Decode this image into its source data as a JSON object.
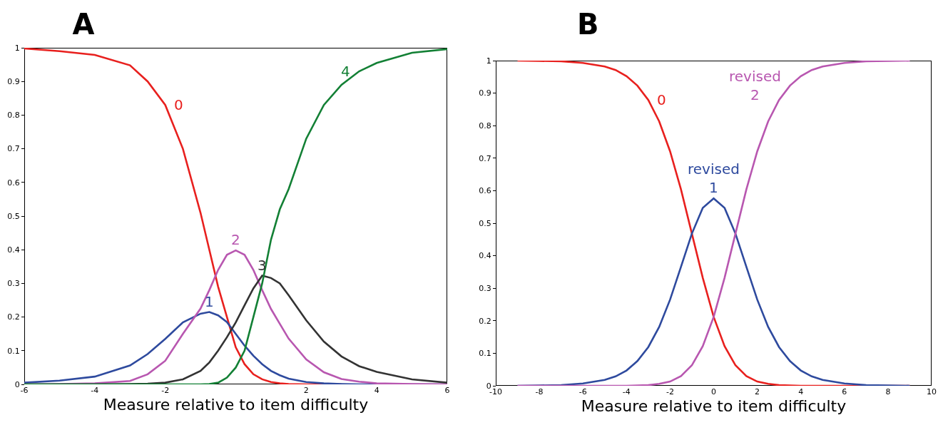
{
  "chart_data": [
    {
      "type": "line",
      "title": "A",
      "xlabel": "Measure relative to item difficulty",
      "x": [
        -6,
        -5,
        -4,
        -3,
        -2.5,
        -2,
        -1.5,
        -1,
        -0.75,
        -0.5,
        -0.25,
        0,
        0.25,
        0.5,
        0.75,
        1,
        1.25,
        1.5,
        2,
        2.5,
        3,
        3.5,
        4,
        5,
        6
      ],
      "series": [
        {
          "name": "0",
          "color": "#e8201e",
          "values": [
            0.998,
            0.99,
            0.979,
            0.948,
            0.9,
            0.83,
            0.7,
            0.51,
            0.4,
            0.29,
            0.2,
            0.11,
            0.06,
            0.03,
            0.015,
            0.007,
            0.003,
            0.001,
            0,
            0,
            0,
            null,
            null,
            null,
            null
          ]
        },
        {
          "name": "1",
          "color": "#2e4a9e",
          "values": [
            0.005,
            0.011,
            0.023,
            0.056,
            0.09,
            0.135,
            0.184,
            0.21,
            0.215,
            0.205,
            0.185,
            0.15,
            0.115,
            0.085,
            0.06,
            0.04,
            0.027,
            0.017,
            0.007,
            0.003,
            0.001,
            0,
            0,
            0,
            0
          ]
        },
        {
          "name": "2",
          "color": "#b857b0",
          "values": [
            0,
            0.001,
            0.003,
            0.01,
            0.03,
            0.07,
            0.15,
            0.225,
            0.28,
            0.34,
            0.385,
            0.398,
            0.385,
            0.34,
            0.28,
            0.224,
            0.18,
            0.136,
            0.074,
            0.036,
            0.016,
            0.008,
            0.003,
            0.001,
            0
          ]
        },
        {
          "name": "3",
          "color": "#333333",
          "values": [
            0,
            0,
            0,
            0.001,
            0.002,
            0.005,
            0.015,
            0.04,
            0.065,
            0.1,
            0.14,
            0.184,
            0.235,
            0.285,
            0.323,
            0.316,
            0.3,
            0.265,
            0.19,
            0.127,
            0.083,
            0.054,
            0.037,
            0.015,
            0.005
          ]
        },
        {
          "name": "4",
          "color": "#138035",
          "values": [
            0,
            0,
            0,
            0,
            0,
            0,
            0,
            0,
            0.001,
            0.005,
            0.02,
            0.05,
            0.1,
            0.2,
            0.3,
            0.43,
            0.52,
            0.58,
            0.73,
            0.83,
            0.89,
            0.93,
            0.955,
            0.985,
            0.996
          ]
        }
      ],
      "xlim": [
        -6,
        6
      ],
      "ylim": [
        0,
        1
      ],
      "xticks": [
        -6,
        -4,
        -2,
        2,
        4,
        6
      ],
      "yticks": [
        0,
        0.1,
        0.2,
        0.3,
        0.4,
        0.5,
        0.6,
        0.7,
        0.8,
        0.9,
        1
      ]
    },
    {
      "type": "line",
      "title": "B",
      "xlabel": "Measure relative to item difficulty",
      "x": [
        -9,
        -8,
        -7,
        -6,
        -5,
        -4.5,
        -4,
        -3.5,
        -3,
        -2.5,
        -2,
        -1.5,
        -1,
        -0.5,
        0,
        0.5,
        1,
        1.5,
        2,
        2.5,
        3,
        3.5,
        4,
        4.5,
        5,
        6,
        7,
        8,
        9
      ],
      "series": [
        {
          "name": "0",
          "color": "#e8201e",
          "values": [
            1,
            0.999,
            0.998,
            0.993,
            0.982,
            0.971,
            0.952,
            0.923,
            0.879,
            0.813,
            0.721,
            0.604,
            0.468,
            0.332,
            0.212,
            0.122,
            0.063,
            0.03,
            0.013,
            0.006,
            0.002,
            0.001,
            0,
            0,
            0,
            0,
            0,
            0,
            0
          ]
        },
        {
          "name": "revised\n1",
          "color": "#2e4a9e",
          "values": [
            0,
            0.001,
            0.002,
            0.007,
            0.018,
            0.029,
            0.047,
            0.076,
            0.119,
            0.181,
            0.265,
            0.366,
            0.468,
            0.547,
            0.576,
            0.547,
            0.468,
            0.366,
            0.265,
            0.181,
            0.119,
            0.076,
            0.047,
            0.029,
            0.018,
            0.007,
            0.002,
            0.001,
            0
          ]
        },
        {
          "name": "revised\n2",
          "color": "#b857b0",
          "values": [
            0,
            0,
            0,
            0,
            0,
            0,
            0,
            0.001,
            0.002,
            0.006,
            0.013,
            0.03,
            0.063,
            0.122,
            0.212,
            0.332,
            0.468,
            0.604,
            0.721,
            0.813,
            0.879,
            0.923,
            0.952,
            0.971,
            0.982,
            0.993,
            0.998,
            0.999,
            1
          ]
        }
      ],
      "xlim": [
        -10,
        10
      ],
      "ylim": [
        0,
        1
      ],
      "xticks": [
        -10,
        -8,
        -6,
        -4,
        -2,
        0,
        2,
        4,
        6,
        8,
        10
      ],
      "yticks": [
        0,
        0.1,
        0.2,
        0.3,
        0.4,
        0.5,
        0.6,
        0.7,
        0.8,
        0.9,
        1
      ]
    }
  ]
}
